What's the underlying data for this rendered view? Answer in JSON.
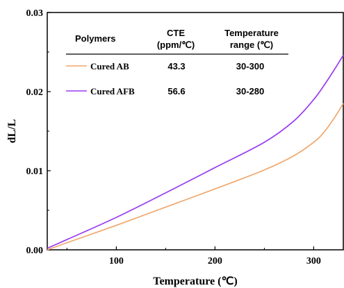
{
  "chart_data": {
    "type": "line",
    "xlabel": "Temperature (℃)",
    "ylabel": "dL/L",
    "xlim": [
      30,
      330
    ],
    "ylim": [
      0,
      0.03
    ],
    "xticks": [
      100,
      200,
      300
    ],
    "xtick_labels": [
      "100",
      "200",
      "300"
    ],
    "yticks": [
      0,
      0.01,
      0.02,
      0.03
    ],
    "ytick_labels": [
      "0.00",
      "0.01",
      "0.02",
      "0.03"
    ],
    "legend": {
      "placement": "top-left",
      "headers": {
        "polymers": "Polymers",
        "cte_line1": "CTE",
        "cte_line2": "(ppm/℃)",
        "range_line1": "Temperature",
        "range_line2": "range  (℃)"
      },
      "rows": [
        {
          "name": "Cured AB",
          "cte": "43.3",
          "range": "30-300"
        },
        {
          "name": "Cured AFB",
          "cte": "56.6",
          "range": "30-280"
        }
      ]
    },
    "series": [
      {
        "name": "Cured AB",
        "color": "#F0A76B",
        "x": [
          30,
          50,
          100,
          150,
          200,
          250,
          280,
          300,
          310,
          320,
          330
        ],
        "y": [
          0.0,
          0.0009,
          0.0031,
          0.0054,
          0.0077,
          0.0101,
          0.0119,
          0.0136,
          0.0148,
          0.0165,
          0.0185
        ]
      },
      {
        "name": "Cured AFB",
        "color": "#9B3CF0",
        "x": [
          30,
          50,
          100,
          150,
          200,
          250,
          280,
          300,
          310,
          320,
          330
        ],
        "y": [
          0.0002,
          0.0013,
          0.0041,
          0.0072,
          0.0104,
          0.0136,
          0.0163,
          0.019,
          0.0207,
          0.0226,
          0.0246
        ]
      }
    ]
  }
}
